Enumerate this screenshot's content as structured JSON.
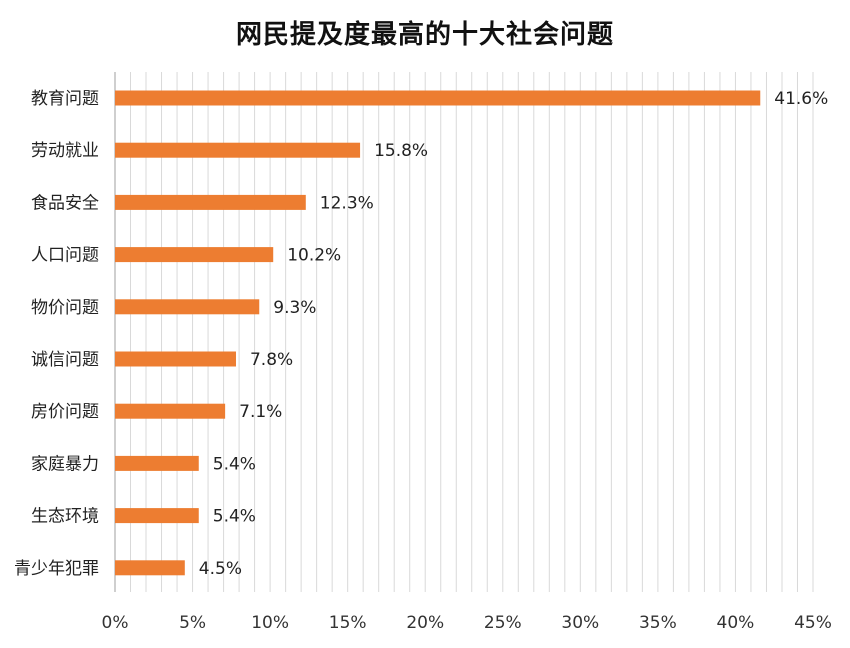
{
  "chart_data": {
    "type": "bar",
    "orientation": "horizontal",
    "title": "网民提及度最高的十大社会问题",
    "xlabel": "",
    "ylabel": "",
    "categories": [
      "教育问题",
      "劳动就业",
      "食品安全",
      "人口问题",
      "物价问题",
      "诚信问题",
      "房价问题",
      "家庭暴力",
      "生态环境",
      "青少年犯罪"
    ],
    "values": [
      41.6,
      15.8,
      12.3,
      10.2,
      9.3,
      7.8,
      7.1,
      5.4,
      5.4,
      4.5
    ],
    "value_labels": [
      "41.6%",
      "15.8%",
      "12.3%",
      "10.2%",
      "9.3%",
      "7.8%",
      "7.1%",
      "5.4%",
      "5.4%",
      "4.5%"
    ],
    "xlim": [
      0,
      45
    ],
    "xticks": [
      0,
      5,
      10,
      15,
      20,
      25,
      30,
      35,
      40,
      45
    ],
    "xtick_labels": [
      "0%",
      "5%",
      "10%",
      "15%",
      "20%",
      "25%",
      "30%",
      "35%",
      "40%",
      "45%"
    ],
    "grid": true,
    "legend": "none",
    "bar_color": "#ED7D31",
    "grid_color": "#D9D9D9"
  }
}
